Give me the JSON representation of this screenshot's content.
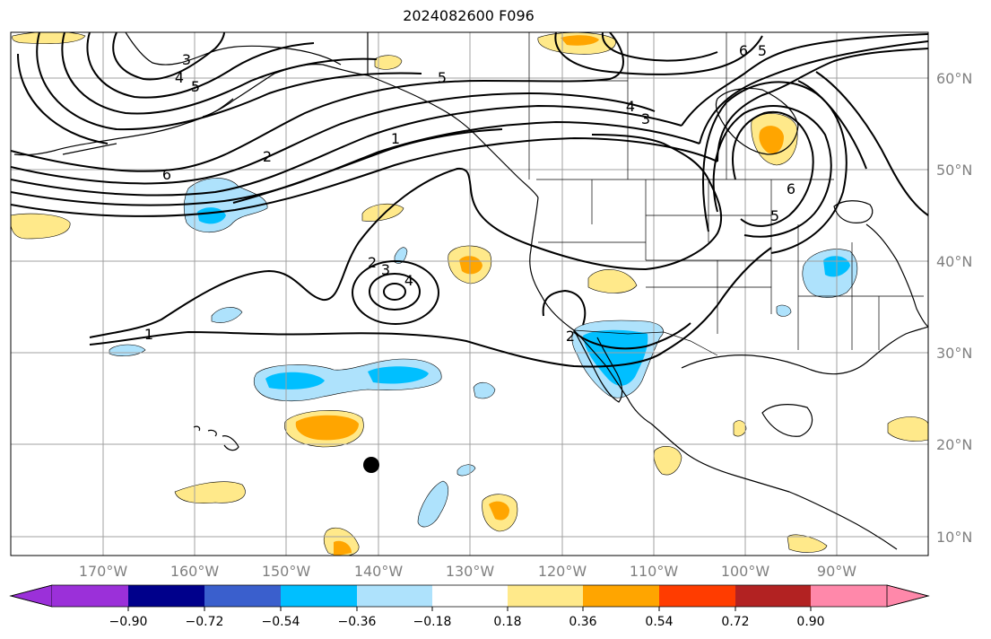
{
  "title": "2024082600 F096",
  "lon_labels": [
    "170°W",
    "160°W",
    "150°W",
    "140°W",
    "130°W",
    "120°W",
    "110°W",
    "100°W",
    "90°W"
  ],
  "lat_labels": [
    "60°N",
    "50°N",
    "40°N",
    "30°N",
    "20°N",
    "10°N"
  ],
  "colorbar": {
    "ticks": [
      "−0.90",
      "−0.72",
      "−0.54",
      "−0.36",
      "−0.18",
      "0.18",
      "0.36",
      "0.54",
      "0.72",
      "0.90"
    ],
    "colors": [
      "#9b30d9",
      "#00008b",
      "#3a5fcd",
      "#00bfff",
      "#aee2fc",
      "#ffffff",
      "#ffe98a",
      "#ffa500",
      "#ff3c00",
      "#b22222",
      "#ff88aa"
    ]
  },
  "contour_labels": [
    "3",
    "4",
    "5",
    "5",
    "6",
    "2",
    "1",
    "2",
    "3",
    "4",
    "1",
    "2",
    "6",
    "5",
    "4",
    "3",
    "6",
    "5"
  ],
  "fill_colors": {
    "light_blue": "#aee2fc",
    "blue": "#00bfff",
    "light_orange": "#ffe98a",
    "orange": "#ffa500"
  }
}
